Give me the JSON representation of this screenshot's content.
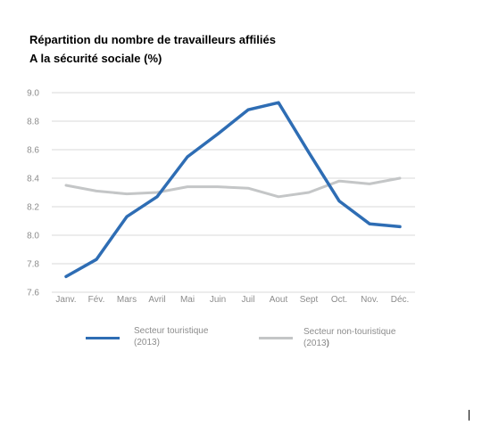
{
  "chart_data": {
    "type": "line",
    "title_line1": "Répartition du nombre de travailleurs affiliés",
    "title_line2": "A la sécurité sociale (%)",
    "xlabel": "",
    "ylabel": "",
    "categories": [
      "Janv.",
      "Fév.",
      "Mars",
      "Avril",
      "Mai",
      "Juin",
      "Juil",
      "Aout",
      "Sept",
      "Oct.",
      "Nov.",
      "Déc."
    ],
    "ylim": [
      7.6,
      9.0
    ],
    "yticks": [
      "9.0",
      "8.8",
      "8.6",
      "8.4",
      "8.2",
      "8.0",
      "7.8",
      "7.6"
    ],
    "grid": true,
    "legend_position": "bottom",
    "series": [
      {
        "name": "Secteur touristique",
        "name_suffix": "(2013)",
        "color": "#2e6db4",
        "values": [
          7.71,
          7.83,
          8.13,
          8.27,
          8.55,
          8.71,
          8.88,
          8.93,
          8.58,
          8.24,
          8.08,
          8.06
        ]
      },
      {
        "name": "Secteur non-touristique",
        "name_suffix": "(2013",
        "name_suffix_end": ")",
        "color": "#c4c6c7",
        "values": [
          8.35,
          8.31,
          8.29,
          8.3,
          8.34,
          8.34,
          8.33,
          8.27,
          8.3,
          8.38,
          8.36,
          8.4
        ]
      }
    ]
  }
}
